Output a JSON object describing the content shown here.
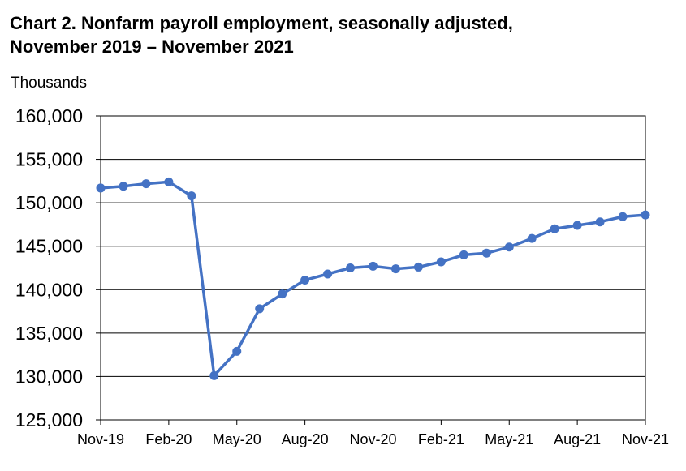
{
  "title_line1": "Chart 2. Nonfarm payroll employment, seasonally adjusted,",
  "title_line2": "November 2019 – November 2021",
  "chart_data": {
    "type": "line",
    "ylabel": "Thousands",
    "ylim": [
      125000,
      160000
    ],
    "yticks": [
      125000,
      130000,
      135000,
      140000,
      145000,
      150000,
      155000,
      160000
    ],
    "ytick_labels": [
      "125,000",
      "130,000",
      "135,000",
      "140,000",
      "145,000",
      "150,000",
      "155,000",
      "160,000"
    ],
    "xtick_labels": [
      "Nov-19",
      "Feb-20",
      "May-20",
      "Aug-20",
      "Nov-20",
      "Feb-21",
      "May-21",
      "Aug-21",
      "Nov-21"
    ],
    "grid": true,
    "x": [
      "Nov-19",
      "Dec-19",
      "Jan-20",
      "Feb-20",
      "Mar-20",
      "Apr-20",
      "May-20",
      "Jun-20",
      "Jul-20",
      "Aug-20",
      "Sep-20",
      "Oct-20",
      "Nov-20",
      "Dec-20",
      "Jan-21",
      "Feb-21",
      "Mar-21",
      "Apr-21",
      "May-21",
      "Jun-21",
      "Jul-21",
      "Aug-21",
      "Sep-21",
      "Oct-21",
      "Nov-21"
    ],
    "series": [
      {
        "color": "#4472C4",
        "values": [
          151700,
          151900,
          152200,
          152400,
          150800,
          130100,
          132900,
          137800,
          139500,
          141100,
          141800,
          142500,
          142700,
          142400,
          142600,
          143200,
          144000,
          144200,
          144900,
          145900,
          147000,
          147400,
          147800,
          148400,
          148600
        ]
      }
    ]
  }
}
